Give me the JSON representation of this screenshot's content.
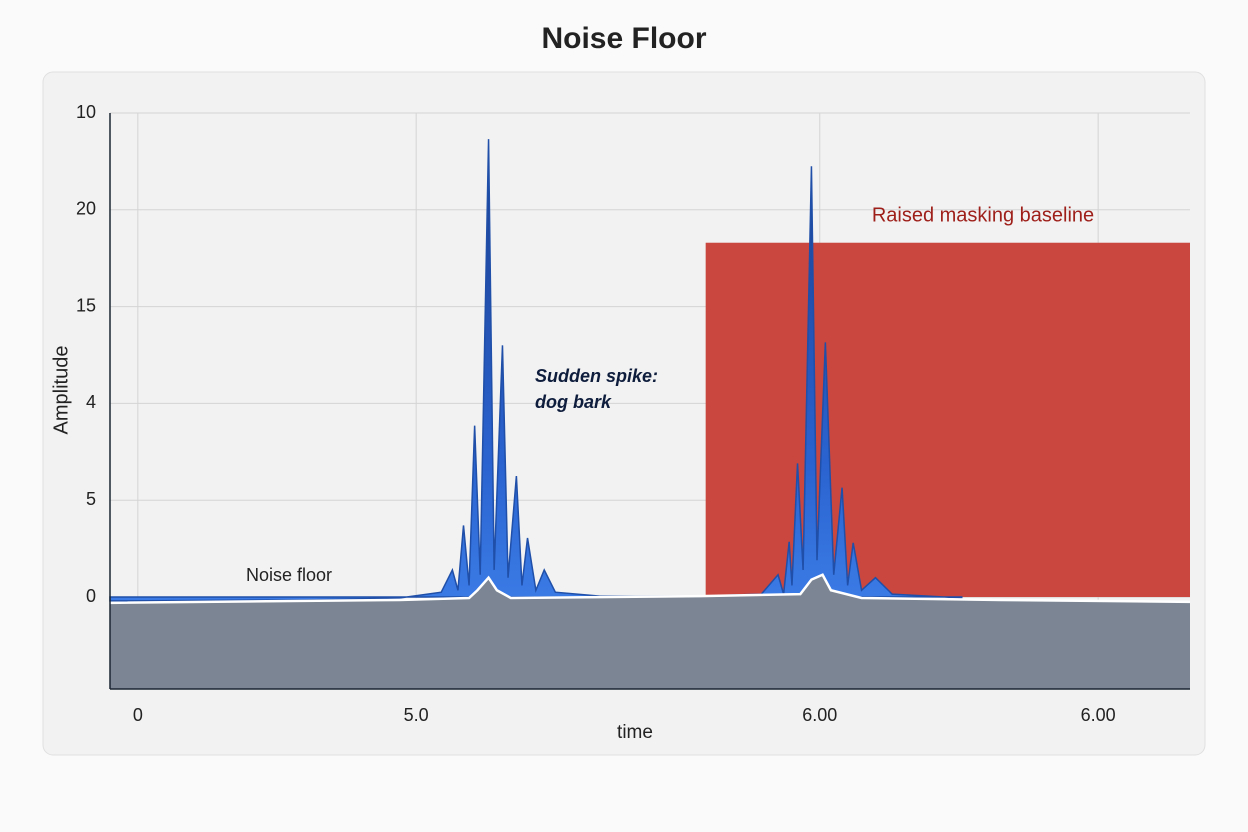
{
  "chart_data": {
    "type": "area",
    "title": "Noise Floor",
    "xlabel": "time",
    "ylabel": "Amplitude",
    "xlim": [
      -0.1,
      3.78
    ],
    "ylim": [
      -0.95,
      5
    ],
    "xticks": [
      0,
      {
        "value": 1,
        "label": "5.0"
      },
      {
        "value": 2.45,
        "label": "6.00"
      },
      {
        "value": 3.45,
        "label": "6.00"
      }
    ],
    "yticks": [
      0,
      {
        "value": 1,
        "label": "5"
      },
      {
        "value": 2,
        "label": "4"
      },
      {
        "value": 3,
        "label": "15"
      },
      {
        "value": 4,
        "label": "20"
      },
      {
        "value": 5,
        "label": "10"
      }
    ],
    "grid": true,
    "region": {
      "label": "Raised masking baseline",
      "x": [
        2.04,
        3.78
      ],
      "y": [
        0,
        3.66
      ],
      "color": "#c9473f"
    },
    "annotations": [
      "Noise floor",
      "Sudden spike:",
      "dog bark"
    ],
    "series": [
      {
        "color": "#1f4fa8",
        "x": [
          -0.1,
          0.58,
          0.94,
          1.09,
          1.13,
          1.15,
          1.17,
          1.19,
          1.21,
          1.23,
          1.26,
          1.28,
          1.31,
          1.33,
          1.36,
          1.38,
          1.4,
          1.43,
          1.46,
          1.5,
          1.66,
          2.02,
          2.24,
          2.3,
          2.32,
          2.34,
          2.35,
          2.37,
          2.39,
          2.42,
          2.44,
          2.47,
          2.5,
          2.53,
          2.55,
          2.57,
          2.6,
          2.65,
          2.71,
          2.96
        ],
        "values": [
          -0.04,
          -0.03,
          -0.01,
          0.05,
          0.28,
          0.07,
          0.74,
          0.12,
          1.77,
          0.23,
          4.73,
          0.28,
          2.6,
          0.2,
          1.25,
          0.12,
          0.61,
          0.07,
          0.28,
          0.05,
          0.01,
          0.01,
          0.03,
          0.23,
          0.03,
          0.57,
          0.12,
          1.38,
          0.28,
          4.45,
          0.38,
          2.63,
          0.23,
          1.13,
          0.12,
          0.56,
          0.07,
          0.2,
          0.03,
          -0.01
        ]
      },
      {
        "color": "#ffffff",
        "fill": "#7b8593",
        "x": [
          -0.1,
          0.94,
          1.19,
          1.22,
          1.26,
          1.29,
          1.34,
          2.02,
          2.38,
          2.42,
          2.46,
          2.49,
          2.6,
          3.1,
          3.78
        ],
        "values": [
          -0.06,
          -0.03,
          -0.01,
          0.07,
          0.2,
          0.07,
          -0.01,
          0.01,
          0.03,
          0.18,
          0.23,
          0.07,
          -0.01,
          -0.03,
          -0.05
        ]
      }
    ]
  }
}
